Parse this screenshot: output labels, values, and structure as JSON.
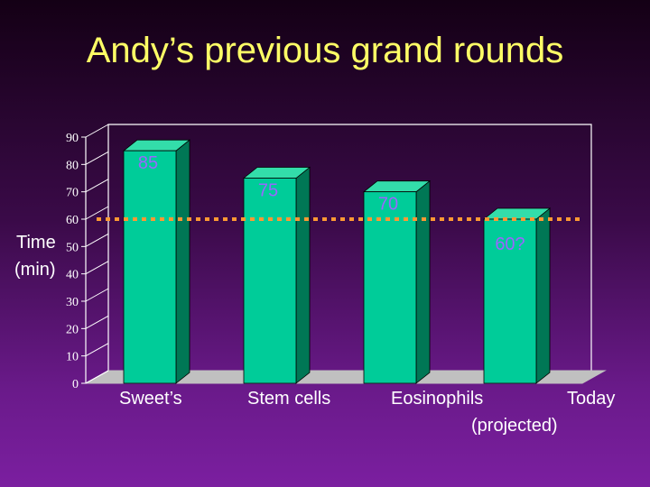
{
  "slide": {
    "title": "Andy’s previous grand rounds"
  },
  "chart_data": {
    "type": "bar",
    "title": "",
    "ylabel_lines": [
      "Time",
      "(min)"
    ],
    "xlabel": "",
    "categories": [
      "Sweet’s",
      "Stem cells",
      "Eosinophils",
      "Today"
    ],
    "category_sublabels": [
      "",
      "",
      "",
      "(projected)"
    ],
    "values": [
      85,
      75,
      70,
      60
    ],
    "data_labels": [
      "85",
      "75",
      "70",
      "60?"
    ],
    "ylim": [
      0,
      90
    ],
    "yticks": [
      "0",
      "10",
      "20",
      "30",
      "40",
      "50",
      "60",
      "70",
      "80",
      "90"
    ],
    "reference_line": 60,
    "grid": false,
    "three_d": true,
    "colors": {
      "bar_front": "#00cc99",
      "bar_side": "#007755",
      "bar_top": "#33ddaa",
      "data_label": "#9966ff",
      "reference_line": "#ff9933",
      "axis": "#ffffff",
      "floor": "#c0c0c0",
      "title": "#ffff66",
      "text": "#ffffff"
    }
  }
}
